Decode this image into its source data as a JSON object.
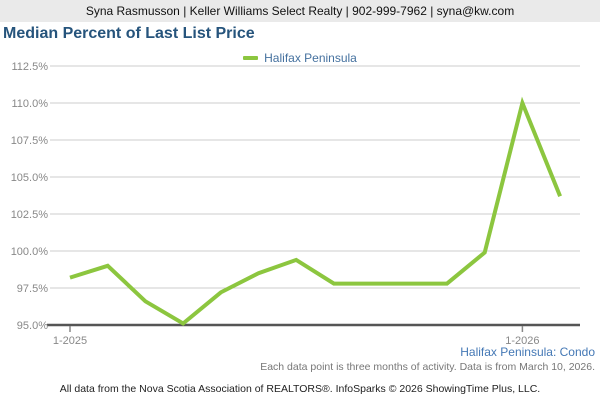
{
  "topbar": {
    "text": "Syna Rasmusson | Keller Williams Select Realty | 902-999-7962 | syna@kw.com"
  },
  "title": "Median Percent of Last List Price",
  "legend": {
    "label": "Halifax Peninsula",
    "swatch_color": "#8CC63F"
  },
  "chart_data": {
    "type": "line",
    "title": "Median Percent of Last List Price",
    "series": [
      {
        "name": "Halifax Peninsula",
        "color": "#8CC63F",
        "values": [
          98.2,
          99.0,
          96.6,
          95.1,
          97.2,
          98.5,
          99.4,
          97.8,
          97.8,
          97.8,
          97.8,
          99.9,
          110.0,
          103.7
        ]
      }
    ],
    "x_tick_labels": [
      {
        "index": 0,
        "label": "1-2025"
      },
      {
        "index": 12,
        "label": "1-2026"
      }
    ],
    "y_ticks": [
      95.0,
      97.5,
      100.0,
      102.5,
      105.0,
      107.5,
      110.0,
      112.5
    ],
    "y_tick_suffix": "%",
    "ylim": [
      95.0,
      112.5
    ],
    "grid": true,
    "legend_position": "top-center"
  },
  "footer": {
    "series_descriptor": "Halifax Peninsula: Condo",
    "data_note": "Each data point is three months of activity. Data is from March 10, 2026.",
    "attribution": "All data from the Nova Scotia Association of REALTORS®. InfoSparks © 2026 ShowingTime Plus, LLC."
  },
  "colors": {
    "accent_green": "#8CC63F",
    "title_blue": "#26547C",
    "link_blue": "#4478B5",
    "axis_gray": "#888888",
    "grid_gray": "#CCCCCC",
    "axis_line_gray": "#555555",
    "topbar_gray": "#EAEAEA"
  }
}
